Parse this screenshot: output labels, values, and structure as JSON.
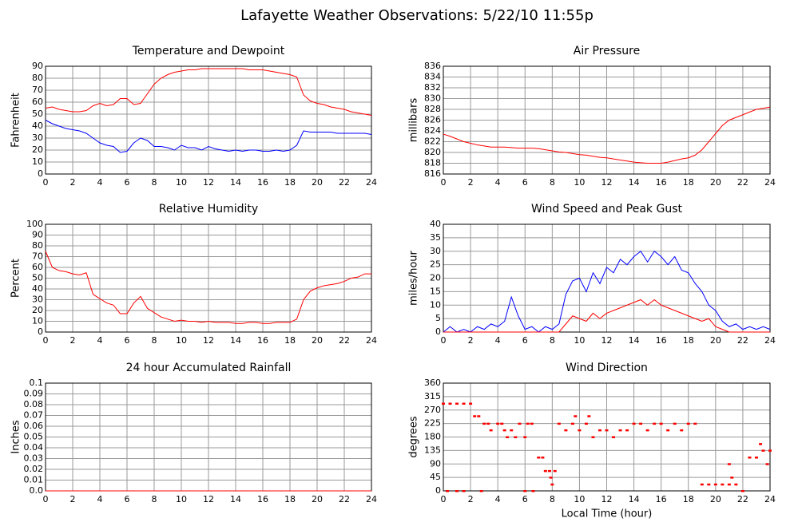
{
  "title": "Lafayette Weather Observations: 5/22/10 11:55p",
  "chart_data": [
    {
      "type": "line",
      "title": "Temperature and Dewpoint",
      "ylabel": "Fahrenheit",
      "x": [
        0,
        0.5,
        1,
        1.5,
        2,
        2.5,
        3,
        3.5,
        4,
        4.5,
        5,
        5.5,
        6,
        6.5,
        7,
        7.5,
        8,
        8.5,
        9,
        9.5,
        10,
        10.5,
        11,
        11.5,
        12,
        12.5,
        13,
        13.5,
        14,
        14.5,
        15,
        15.5,
        16,
        16.5,
        17,
        17.5,
        18,
        18.5,
        19,
        19.5,
        20,
        20.5,
        21,
        21.5,
        22,
        22.5,
        23,
        23.5,
        24
      ],
      "series": [
        {
          "color": "#ff0000",
          "values": [
            55,
            56,
            54,
            53,
            52,
            52,
            53,
            57,
            59,
            57,
            58,
            63,
            63,
            58,
            59,
            67,
            75,
            80,
            83,
            85,
            86,
            87,
            87,
            88,
            88,
            88,
            88,
            88,
            88,
            88,
            87,
            87,
            87,
            86,
            85,
            84,
            83,
            81,
            66,
            61,
            59,
            58,
            56,
            55,
            54,
            52,
            51,
            50,
            49
          ]
        },
        {
          "color": "#0000ff",
          "values": [
            45,
            42,
            40,
            38,
            37,
            36,
            34,
            30,
            26,
            24,
            23,
            18,
            19,
            26,
            30,
            28,
            23,
            23,
            22,
            20,
            24,
            22,
            22,
            20,
            23,
            21,
            20,
            19,
            20,
            19,
            20,
            20,
            19,
            19,
            20,
            19,
            20,
            24,
            36,
            35,
            35,
            35,
            35,
            34,
            34,
            34,
            34,
            34,
            33
          ]
        }
      ],
      "xlim": [
        0,
        24
      ],
      "xticks": [
        0,
        2,
        4,
        6,
        8,
        10,
        12,
        14,
        16,
        18,
        20,
        22,
        24
      ],
      "ylim": [
        0,
        90
      ],
      "yticks": [
        0,
        10,
        20,
        30,
        40,
        50,
        60,
        70,
        80,
        90
      ],
      "grid": true
    },
    {
      "type": "line",
      "title": "Air Pressure",
      "ylabel": "millibars",
      "x": [
        0,
        0.5,
        1,
        1.5,
        2,
        2.5,
        3,
        3.5,
        4,
        4.5,
        5,
        5.5,
        6,
        6.5,
        7,
        7.5,
        8,
        8.5,
        9,
        9.5,
        10,
        10.5,
        11,
        11.5,
        12,
        12.5,
        13,
        13.5,
        14,
        14.5,
        15,
        15.5,
        16,
        16.5,
        17,
        17.5,
        18,
        18.5,
        19,
        19.5,
        20,
        20.5,
        21,
        21.5,
        22,
        22.5,
        23,
        23.5,
        24
      ],
      "series": [
        {
          "color": "#ff0000",
          "values": [
            823.4,
            823,
            822.5,
            822,
            821.7,
            821.4,
            821.2,
            821,
            821,
            821,
            820.9,
            820.8,
            820.8,
            820.8,
            820.7,
            820.5,
            820.3,
            820.1,
            820,
            819.8,
            819.6,
            819.5,
            819.3,
            819.1,
            819,
            818.8,
            818.6,
            818.4,
            818.2,
            818.1,
            818,
            818,
            818,
            818.2,
            818.5,
            818.8,
            819,
            819.5,
            820.5,
            822,
            823.5,
            825,
            826,
            826.5,
            827,
            827.5,
            828,
            828.2,
            828.4
          ]
        }
      ],
      "xlim": [
        0,
        24
      ],
      "xticks": [
        0,
        2,
        4,
        6,
        8,
        10,
        12,
        14,
        16,
        18,
        20,
        22,
        24
      ],
      "ylim": [
        816,
        836
      ],
      "yticks": [
        816,
        818,
        820,
        822,
        824,
        826,
        828,
        830,
        832,
        834,
        836
      ],
      "grid": true
    },
    {
      "type": "line",
      "title": "Relative Humidity",
      "ylabel": "Percent",
      "x": [
        0,
        0.5,
        1,
        1.5,
        2,
        2.5,
        3,
        3.5,
        4,
        4.5,
        5,
        5.5,
        6,
        6.5,
        7,
        7.5,
        8,
        8.5,
        9,
        9.5,
        10,
        10.5,
        11,
        11.5,
        12,
        12.5,
        13,
        13.5,
        14,
        14.5,
        15,
        15.5,
        16,
        16.5,
        17,
        17.5,
        18,
        18.5,
        19,
        19.5,
        20,
        20.5,
        21,
        21.5,
        22,
        22.5,
        23,
        23.5,
        24
      ],
      "series": [
        {
          "color": "#ff0000",
          "values": [
            75,
            60,
            57,
            56,
            54,
            53,
            55,
            35,
            31,
            27,
            25,
            17,
            17,
            27,
            33,
            22,
            18,
            14,
            12,
            10,
            11,
            10,
            10,
            9,
            10,
            9,
            9,
            9,
            8,
            8,
            9,
            9,
            8,
            8,
            9,
            9,
            9,
            12,
            30,
            38,
            41,
            43,
            44,
            45,
            47,
            50,
            51,
            54,
            54
          ]
        }
      ],
      "xlim": [
        0,
        24
      ],
      "xticks": [
        0,
        2,
        4,
        6,
        8,
        10,
        12,
        14,
        16,
        18,
        20,
        22,
        24
      ],
      "ylim": [
        0,
        100
      ],
      "yticks": [
        0,
        10,
        20,
        30,
        40,
        50,
        60,
        70,
        80,
        90,
        100
      ],
      "grid": true
    },
    {
      "type": "line",
      "title": "Wind Speed and Peak Gust",
      "ylabel": "miles/hour",
      "x": [
        0,
        0.5,
        1,
        1.5,
        2,
        2.5,
        3,
        3.5,
        4,
        4.5,
        5,
        5.5,
        6,
        6.5,
        7,
        7.5,
        8,
        8.5,
        9,
        9.5,
        10,
        10.5,
        11,
        11.5,
        12,
        12.5,
        13,
        13.5,
        14,
        14.5,
        15,
        15.5,
        16,
        16.5,
        17,
        17.5,
        18,
        18.5,
        19,
        19.5,
        20,
        20.5,
        21,
        21.5,
        22,
        22.5,
        23,
        23.5,
        24
      ],
      "series": [
        {
          "color": "#0000ff",
          "values": [
            0,
            2,
            0,
            1,
            0,
            2,
            1,
            3,
            2,
            4,
            13,
            6,
            1,
            2,
            0,
            2,
            1,
            3,
            14,
            19,
            20,
            15,
            22,
            18,
            24,
            22,
            27,
            25,
            28,
            30,
            26,
            30,
            28,
            25,
            28,
            23,
            22,
            18,
            15,
            10,
            8,
            4,
            2,
            3,
            1,
            2,
            1,
            2,
            1
          ]
        },
        {
          "color": "#ff0000",
          "values": [
            0,
            0,
            0,
            0,
            0,
            0,
            0,
            0,
            0,
            0,
            0,
            0,
            0,
            0,
            0,
            0,
            0,
            0,
            3,
            6,
            5,
            4,
            7,
            5,
            7,
            8,
            9,
            10,
            11,
            12,
            10,
            12,
            10,
            9,
            8,
            7,
            6,
            5,
            4,
            5,
            2,
            1,
            0,
            0,
            0,
            0,
            0,
            0,
            0
          ]
        }
      ],
      "xlim": [
        0,
        24
      ],
      "xticks": [
        0,
        2,
        4,
        6,
        8,
        10,
        12,
        14,
        16,
        18,
        20,
        22,
        24
      ],
      "ylim": [
        0,
        40
      ],
      "yticks": [
        0,
        5,
        10,
        15,
        20,
        25,
        30,
        35,
        40
      ],
      "grid": true
    },
    {
      "type": "line",
      "title": "24 hour Accumulated Rainfall",
      "ylabel": "Inches",
      "x": [
        0,
        24
      ],
      "series": [
        {
          "color": "#ff0000",
          "values": [
            0,
            0
          ]
        }
      ],
      "xlim": [
        0,
        24
      ],
      "xticks": [
        0,
        2,
        4,
        6,
        8,
        10,
        12,
        14,
        16,
        18,
        20,
        22,
        24
      ],
      "ylim": [
        0,
        0.1
      ],
      "yticks": [
        {
          "value": 0,
          "label": "0.0"
        },
        0.01,
        0.02,
        0.03,
        0.04,
        0.05,
        0.06,
        0.07,
        0.08,
        0.09,
        0.1
      ],
      "grid": true
    },
    {
      "type": "scatter",
      "title": "Wind Direction",
      "ylabel": "degrees",
      "xlabel": "Local Time (hour)",
      "x": [
        0,
        0.3,
        0.5,
        1,
        1,
        1.5,
        1.5,
        2,
        2.3,
        2.6,
        2.8,
        3,
        3.3,
        3.5,
        4,
        4.3,
        4.5,
        4.7,
        5,
        5.3,
        5.6,
        6,
        6,
        6.2,
        6.5,
        6.6,
        7,
        7.3,
        7.5,
        7.8,
        7.9,
        8,
        8.2,
        8.5,
        9,
        9.5,
        9.7,
        10,
        10.5,
        10.7,
        11,
        11.5,
        12,
        12.5,
        13,
        13.5,
        14,
        14.5,
        15,
        15.5,
        16,
        16.5,
        17,
        17.5,
        18,
        18.5,
        19,
        19.5,
        20,
        20.5,
        21,
        21,
        21.2,
        21.5,
        22,
        22.5,
        23,
        23.3,
        23.5,
        23.8,
        24
      ],
      "series": [
        {
          "color": "#ff0000",
          "values": [
            292,
            0,
            292,
            292,
            0,
            292,
            0,
            292,
            250,
            250,
            0,
            225,
            225,
            203,
            225,
            225,
            203,
            180,
            203,
            180,
            225,
            180,
            0,
            225,
            225,
            0,
            112,
            112,
            67,
            67,
            45,
            22,
            67,
            225,
            203,
            225,
            250,
            203,
            225,
            250,
            180,
            203,
            203,
            180,
            203,
            203,
            225,
            225,
            203,
            225,
            225,
            203,
            225,
            203,
            225,
            225,
            22,
            22,
            22,
            22,
            22,
            90,
            45,
            22,
            0,
            112,
            112,
            157,
            135,
            90,
            135
          ]
        }
      ],
      "xlim": [
        0,
        24
      ],
      "xticks": [
        0,
        2,
        4,
        6,
        8,
        10,
        12,
        14,
        16,
        18,
        20,
        22,
        24
      ],
      "ylim": [
        0,
        360
      ],
      "yticks": [
        0,
        45,
        90,
        135,
        180,
        225,
        270,
        315,
        360
      ],
      "grid": true
    }
  ]
}
